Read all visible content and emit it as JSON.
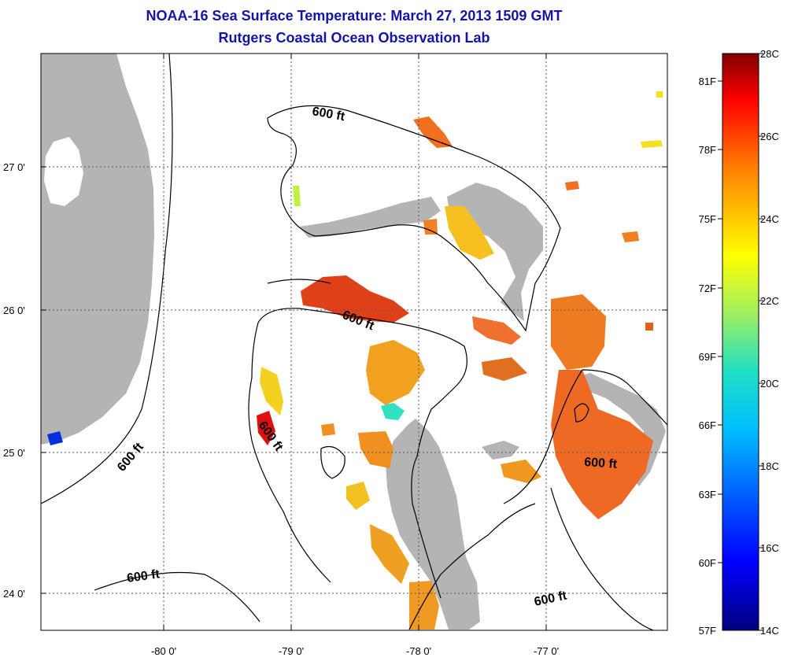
{
  "title": "NOAA-16 Sea Surface Temperature:  March 27, 2013 1509 GMT",
  "subtitle": "Rutgers Coastal Ocean Observation Lab",
  "axes": {
    "lat_ticks": [
      "27 0'",
      "26 0'",
      "25 0'",
      "24 0'"
    ],
    "lon_ticks": [
      "-80 0'",
      "-79 0'",
      "-78 0'",
      "-77 0'"
    ]
  },
  "contour_labels": [
    "600 ft",
    "600 ft",
    "600 ft",
    "600 ft",
    "600 ft",
    "600 ft",
    "600 ft"
  ],
  "colorbar": {
    "fahrenheit": [
      "81F",
      "78F",
      "75F",
      "72F",
      "69F",
      "66F",
      "63F",
      "60F",
      "57F"
    ],
    "celsius": [
      "28C",
      "26C",
      "24C",
      "22C",
      "20C",
      "18C",
      "16C",
      "14C"
    ]
  },
  "colors": {
    "land": "#b4b4b4",
    "ocean": "#ffffff",
    "title": "#1414a8",
    "scale_top": "#800000",
    "scale_bottom": "#000080"
  },
  "legend": {
    "placement": "right"
  }
}
